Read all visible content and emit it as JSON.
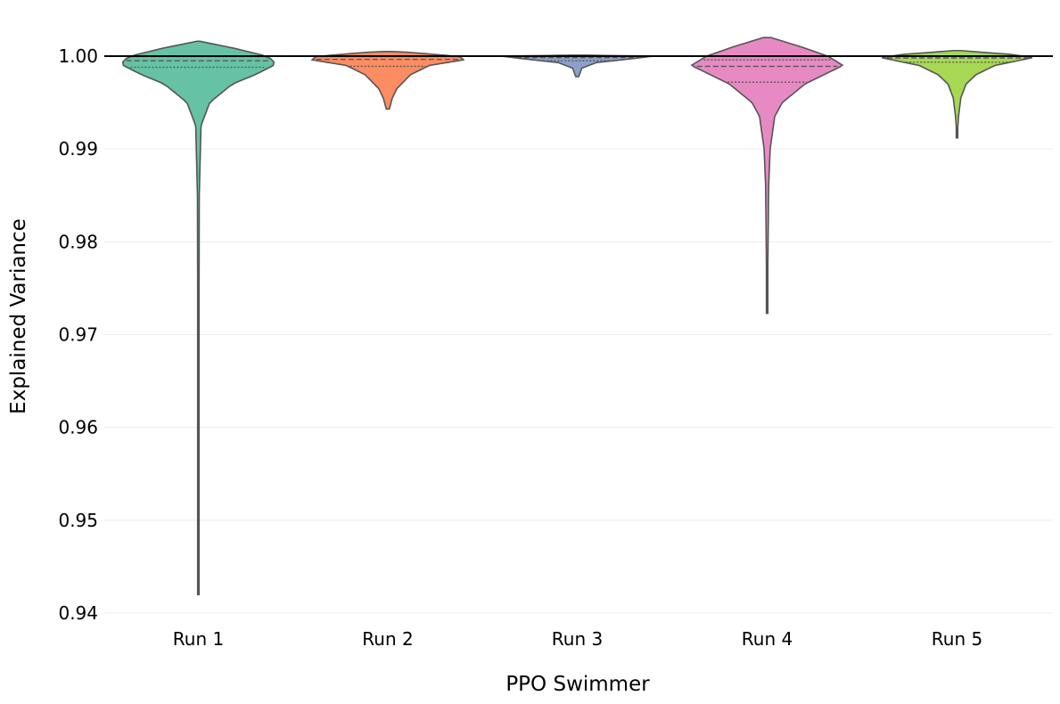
{
  "chart_data": {
    "type": "violin",
    "xlabel": "PPO  Swimmer",
    "ylabel": "Explained Variance",
    "ylim": [
      0.94,
      1.0025
    ],
    "yticks": [
      0.94,
      0.95,
      0.96,
      0.97,
      0.98,
      0.99,
      1.0
    ],
    "ytick_labels": [
      "0.94",
      "0.95",
      "0.96",
      "0.97",
      "0.98",
      "0.99",
      "1.00"
    ],
    "reference_line": 1.0,
    "grid": "horizontal",
    "inner": "quartile",
    "categories": [
      "Run 1",
      "Run 2",
      "Run 3",
      "Run 4",
      "Run 5"
    ],
    "series": [
      {
        "name": "Run 1",
        "color": "#66c2a5",
        "min": 0.942,
        "max": 1.0016,
        "q1": 0.9988,
        "median": 0.9995,
        "q3": 0.99995,
        "profile": [
          [
            0.942,
            0.0
          ],
          [
            0.95,
            0.005
          ],
          [
            0.97,
            0.008
          ],
          [
            0.985,
            0.012
          ],
          [
            0.9925,
            0.035
          ],
          [
            0.995,
            0.15
          ],
          [
            0.997,
            0.45
          ],
          [
            0.998,
            0.75
          ],
          [
            0.999,
            0.99
          ],
          [
            0.9995,
            1.0
          ],
          [
            1.0,
            0.9
          ],
          [
            1.0008,
            0.5
          ],
          [
            1.0013,
            0.2
          ],
          [
            1.0016,
            0.02
          ]
        ]
      },
      {
        "name": "Run 2",
        "color": "#fc8d62",
        "min": 0.9943,
        "max": 1.0005,
        "q1": 0.9989,
        "median": 0.99965,
        "q3": 0.99995,
        "profile": [
          [
            0.9943,
            0.02
          ],
          [
            0.9955,
            0.06
          ],
          [
            0.9965,
            0.12
          ],
          [
            0.998,
            0.3
          ],
          [
            0.999,
            0.55
          ],
          [
            0.9996,
            1.0
          ],
          [
            0.99995,
            0.95
          ],
          [
            1.0002,
            0.6
          ],
          [
            1.0004,
            0.3
          ],
          [
            1.0005,
            0.05
          ]
        ]
      },
      {
        "name": "Run 3",
        "color": "#8da0cb",
        "min": 0.9978,
        "max": 1.0001,
        "q1": 0.9995,
        "median": 0.99985,
        "q3": 1.0,
        "profile": [
          [
            0.9978,
            0.02
          ],
          [
            0.9987,
            0.06
          ],
          [
            0.9993,
            0.25
          ],
          [
            0.99975,
            0.75
          ],
          [
            1.0,
            1.0
          ],
          [
            1.0001,
            0.1
          ]
        ]
      },
      {
        "name": "Run 4",
        "color": "#e78ac3",
        "min": 0.9723,
        "max": 1.002,
        "q1": 0.9972,
        "median": 0.9989,
        "q3": 0.9996,
        "profile": [
          [
            0.9723,
            0.0
          ],
          [
            0.978,
            0.01
          ],
          [
            0.986,
            0.02
          ],
          [
            0.99,
            0.04
          ],
          [
            0.9935,
            0.1
          ],
          [
            0.995,
            0.2
          ],
          [
            0.997,
            0.5
          ],
          [
            0.998,
            0.75
          ],
          [
            0.999,
            1.0
          ],
          [
            1.0,
            0.8
          ],
          [
            1.001,
            0.45
          ],
          [
            1.0015,
            0.25
          ],
          [
            1.002,
            0.05
          ]
        ]
      },
      {
        "name": "Run 5",
        "color": "#a6d854",
        "min": 0.9912,
        "max": 1.0006,
        "q1": 0.99935,
        "median": 0.9998,
        "q3": 1.0,
        "profile": [
          [
            0.9912,
            0.0
          ],
          [
            0.9935,
            0.02
          ],
          [
            0.9955,
            0.05
          ],
          [
            0.997,
            0.12
          ],
          [
            0.998,
            0.25
          ],
          [
            0.999,
            0.5
          ],
          [
            0.9995,
            0.8
          ],
          [
            0.99985,
            1.0
          ],
          [
            1.0002,
            0.7
          ],
          [
            1.0004,
            0.35
          ],
          [
            1.0006,
            0.05
          ]
        ]
      }
    ]
  }
}
